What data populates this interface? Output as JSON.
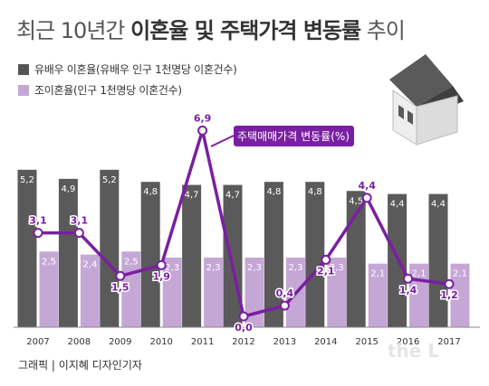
{
  "title": {
    "part1": "최근 10년간 ",
    "part2": "이혼율 및 주택가격 변동률",
    "part3": " 추이"
  },
  "legend": [
    {
      "label": "유배우 이혼율(유배우 인구 1천명당 이혼건수)",
      "color": "#555555"
    },
    {
      "label": "조이혼율(인구 1천명당 이혼건수)",
      "color": "#c5a7d6"
    }
  ],
  "line_label": "주택매매가격 변동률(%)",
  "credit": "그래픽 | 이지혜 디자인기자",
  "watermark": "the L",
  "colors": {
    "bar_dark": "#5a5a5a",
    "bar_light": "#c5a7d6",
    "line": "#7a1fa2"
  },
  "chart_data": {
    "type": "bar",
    "categories": [
      "2007",
      "2008",
      "2009",
      "2010",
      "2011",
      "2012",
      "2013",
      "2014",
      "2015",
      "2016",
      "2017"
    ],
    "series": [
      {
        "name": "유배우 이혼율(유배우 인구 1천명당 이혼건수)",
        "type": "bar",
        "values": [
          5.2,
          4.9,
          5.2,
          4.8,
          4.7,
          4.7,
          4.8,
          4.8,
          4.5,
          4.4,
          4.4
        ]
      },
      {
        "name": "조이혼율(인구 1천명당 이혼건수)",
        "type": "bar",
        "values": [
          2.5,
          2.4,
          2.5,
          2.3,
          2.3,
          2.3,
          2.3,
          2.3,
          2.1,
          2.1,
          2.1
        ]
      },
      {
        "name": "주택매매가격 변동률(%)",
        "type": "line",
        "values": [
          3.1,
          3.1,
          1.5,
          1.9,
          6.9,
          0.0,
          0.4,
          2.1,
          4.4,
          1.4,
          1.2
        ]
      }
    ]
  }
}
